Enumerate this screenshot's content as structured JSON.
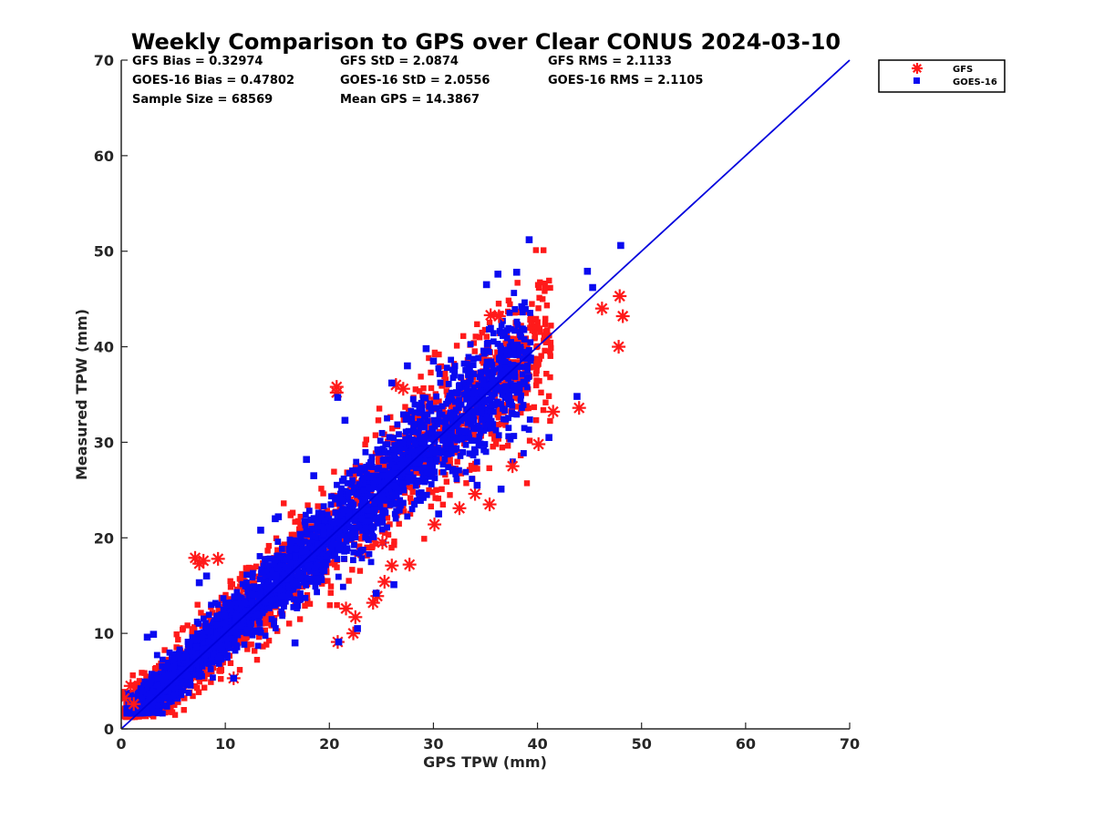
{
  "chart_data": {
    "type": "scatter",
    "title": "Weekly Comparison to GPS over Clear CONUS 2024-03-10",
    "xlabel": "GPS TPW (mm)",
    "ylabel": "Measured TPW (mm)",
    "xlim": [
      0,
      70
    ],
    "ylim": [
      0,
      70
    ],
    "xticks": [
      "0",
      "10",
      "20",
      "30",
      "40",
      "50",
      "60",
      "70"
    ],
    "yticks": [
      "0",
      "10",
      "20",
      "30",
      "40",
      "50",
      "60",
      "70"
    ],
    "grid": false,
    "legend_placement": "outside-top-right",
    "reference_line": {
      "from": [
        0,
        0
      ],
      "to": [
        70,
        70
      ],
      "color": "#0000dd"
    },
    "stats": [
      [
        "GFS Bias = 0.32974",
        "GFS StD = 2.0874",
        "GFS RMS = 2.1133"
      ],
      [
        "GOES-16 Bias = 0.47802",
        "GOES-16 StD = 2.0556",
        "GOES-16 RMS = 2.1105"
      ],
      [
        "Sample Size = 68569",
        "Mean GPS = 14.3867"
      ]
    ],
    "series": [
      {
        "name": "GFS",
        "marker": "asterisk",
        "color": "#ff1a1a",
        "outliers": [
          [
            20.7,
            35.8
          ],
          [
            20.7,
            35.2
          ],
          [
            26.4,
            36.0
          ],
          [
            27.1,
            35.6
          ],
          [
            35.5,
            43.3
          ],
          [
            36.3,
            43.2
          ],
          [
            46.2,
            44.0
          ],
          [
            47.9,
            45.3
          ],
          [
            48.2,
            43.2
          ],
          [
            47.8,
            40.0
          ],
          [
            44.0,
            33.6
          ],
          [
            41.5,
            33.2
          ],
          [
            40.1,
            29.8
          ],
          [
            37.6,
            27.5
          ],
          [
            35.4,
            23.5
          ],
          [
            34.0,
            24.6
          ],
          [
            32.5,
            23.1
          ],
          [
            30.1,
            21.4
          ],
          [
            27.7,
            17.2
          ],
          [
            26.0,
            17.1
          ],
          [
            25.1,
            19.5
          ],
          [
            25.3,
            15.4
          ],
          [
            24.6,
            13.9
          ],
          [
            24.2,
            13.2
          ],
          [
            22.5,
            11.7
          ],
          [
            22.3,
            10.0
          ],
          [
            20.8,
            9.1
          ],
          [
            21.6,
            12.6
          ],
          [
            10.8,
            5.3
          ],
          [
            7.1,
            17.9
          ],
          [
            7.5,
            17.3
          ],
          [
            7.9,
            17.6
          ],
          [
            9.3,
            17.8
          ],
          [
            0.3,
            3.2
          ],
          [
            0.9,
            4.5
          ],
          [
            1.2,
            2.6
          ]
        ]
      },
      {
        "name": "GOES-16",
        "marker": "square",
        "color": "#0a0af0",
        "outliers": [
          [
            39.2,
            51.2
          ],
          [
            48.0,
            50.6
          ],
          [
            36.2,
            47.6
          ],
          [
            38.0,
            47.8
          ],
          [
            44.8,
            47.9
          ],
          [
            45.3,
            46.2
          ],
          [
            35.1,
            46.5
          ],
          [
            29.3,
            39.8
          ],
          [
            30.0,
            38.5
          ],
          [
            27.5,
            38.0
          ],
          [
            26.0,
            36.2
          ],
          [
            20.8,
            34.7
          ],
          [
            21.5,
            32.3
          ],
          [
            18.5,
            26.5
          ],
          [
            17.8,
            28.2
          ],
          [
            15.1,
            22.2
          ],
          [
            14.8,
            22.0
          ],
          [
            13.4,
            20.8
          ],
          [
            7.5,
            15.3
          ],
          [
            8.2,
            16.0
          ],
          [
            43.8,
            34.8
          ],
          [
            41.1,
            30.5
          ],
          [
            36.5,
            25.1
          ],
          [
            34.2,
            25.5
          ],
          [
            30.5,
            22.5
          ],
          [
            26.2,
            15.1
          ],
          [
            24.5,
            14.2
          ],
          [
            22.7,
            10.5
          ],
          [
            20.9,
            9.1
          ],
          [
            16.7,
            9.0
          ],
          [
            10.8,
            5.3
          ],
          [
            2.5,
            9.6
          ],
          [
            3.1,
            9.9
          ]
        ]
      }
    ]
  }
}
